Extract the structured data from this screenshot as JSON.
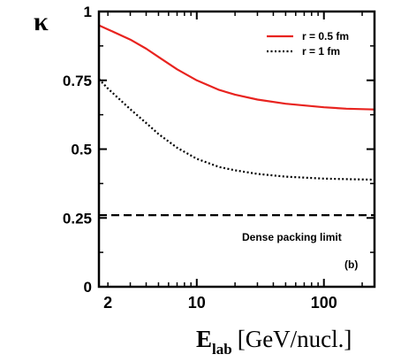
{
  "chart_data": {
    "type": "line",
    "ylabel": "κ",
    "xlabel": {
      "main": "E",
      "sub": "lab",
      "unit": "[GeV/nucl.]"
    },
    "xscale": "log",
    "xlim": [
      1.7,
      250
    ],
    "ylim": [
      0,
      1
    ],
    "x_ticks": [
      2,
      10,
      100
    ],
    "x_tick_labels": [
      "2",
      "10",
      "100"
    ],
    "y_ticks": [
      0,
      0.25,
      0.5,
      0.75,
      1
    ],
    "y_tick_labels": [
      "0",
      "0.25",
      "0.5",
      "0.75",
      "1"
    ],
    "legend_position": "top-right",
    "series": [
      {
        "name": "r = 0.5 fm",
        "color": "#e8231f",
        "style": "solid",
        "x": [
          1.7,
          2,
          3,
          4,
          5,
          7,
          10,
          15,
          20,
          30,
          50,
          100,
          150,
          250
        ],
        "y": [
          0.95,
          0.935,
          0.898,
          0.865,
          0.835,
          0.79,
          0.75,
          0.715,
          0.698,
          0.68,
          0.665,
          0.652,
          0.647,
          0.644
        ]
      },
      {
        "name": "r = 1 fm",
        "color": "#000000",
        "style": "dotted",
        "x": [
          1.7,
          2,
          3,
          4,
          5,
          7,
          10,
          15,
          20,
          30,
          50,
          100,
          150,
          250
        ],
        "y": [
          0.755,
          0.72,
          0.645,
          0.595,
          0.555,
          0.505,
          0.465,
          0.435,
          0.423,
          0.41,
          0.4,
          0.393,
          0.391,
          0.389
        ]
      },
      {
        "name": "",
        "color": "#000000",
        "style": "dashed",
        "x": [
          1.7,
          250
        ],
        "y": [
          0.26,
          0.26
        ]
      }
    ],
    "annotations": [
      "Dense packing limit",
      "(b)"
    ]
  }
}
